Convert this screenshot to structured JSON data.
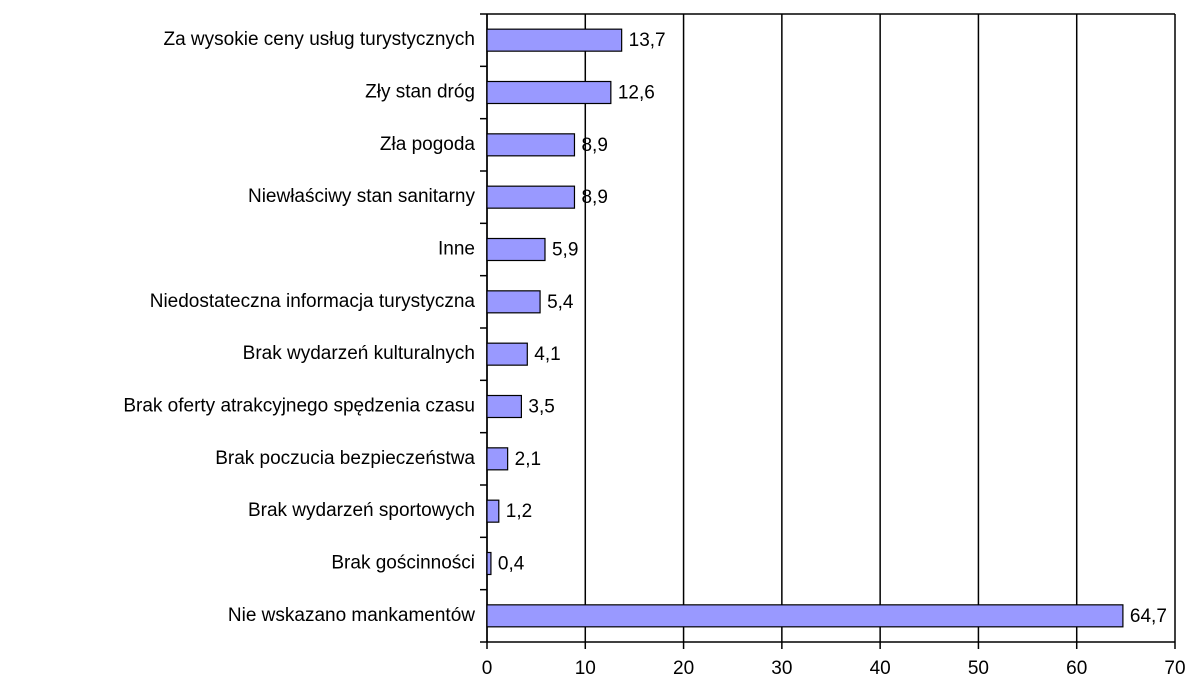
{
  "chart_data": {
    "type": "bar",
    "orientation": "horizontal",
    "categories": [
      "Za wysokie ceny usług turystycznych",
      "Zły stan dróg",
      "Zła pogoda",
      "Niewłaściwy stan sanitarny",
      "Inne",
      "Niedostateczna informacja turystyczna",
      "Brak wydarzeń kulturalnych",
      "Brak oferty atrakcyjnego spędzenia czasu",
      "Brak poczucia bezpieczeństwa",
      "Brak wydarzeń sportowych",
      "Brak gościnności",
      "Nie wskazano mankamentów"
    ],
    "values": [
      13.7,
      12.6,
      8.9,
      8.9,
      5.9,
      5.4,
      4.1,
      3.5,
      2.1,
      1.2,
      0.4,
      64.7
    ],
    "value_labels": [
      "13,7",
      "12,6",
      "8,9",
      "8,9",
      "5,9",
      "5,4",
      "4,1",
      "3,5",
      "2,1",
      "1,2",
      "0,4",
      "64,7"
    ],
    "color": "#9999ff",
    "xlim": [
      0,
      70
    ],
    "xticks": [
      0,
      10,
      20,
      30,
      40,
      50,
      60,
      70
    ],
    "grid": true
  }
}
